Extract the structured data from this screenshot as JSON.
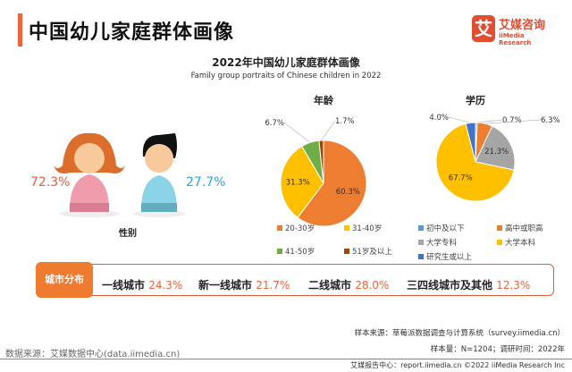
{
  "header": {
    "title": "中国幼儿家庭群体画像",
    "logo_mark": "艾",
    "logo_cn": "艾媒咨询",
    "logo_en": "iiMedia Research"
  },
  "chart_title": "2022年中国幼儿家庭群体画像",
  "chart_subtitle": "Family group portraits of Chinese children in 2022",
  "gender": {
    "label": "性别",
    "female_pct": "72.3%",
    "male_pct": "27.7%",
    "female_color": "#e06040",
    "male_color": "#2aa6e0"
  },
  "chart_data": [
    {
      "type": "pie",
      "title": "年龄",
      "categories": [
        "20-30岁",
        "31-40岁",
        "41-50岁",
        "51岁及以上"
      ],
      "values": [
        60.3,
        31.3,
        6.7,
        1.7
      ],
      "labels": [
        "60.3%",
        "31.3%",
        "6.7%",
        "1.7%"
      ],
      "colors": [
        "#ed7d31",
        "#ffc000",
        "#70ad47",
        "#9e480e"
      ]
    },
    {
      "type": "pie",
      "title": "学历",
      "categories": [
        "初中及以下",
        "高中或职高",
        "大学专科",
        "大学本科",
        "研究生或以上"
      ],
      "values": [
        0.7,
        6.3,
        21.3,
        67.7,
        4.0
      ],
      "labels": [
        "0.7%",
        "6.3%",
        "21.3%",
        "67.7%",
        "4.0%"
      ],
      "colors": [
        "#5b9bd5",
        "#ed7d31",
        "#a5a5a5",
        "#ffc000",
        "#4472c4"
      ]
    }
  ],
  "city": {
    "tag": "城市分布",
    "items": [
      {
        "name": "一线城市",
        "value": "24.3%"
      },
      {
        "name": "新一线城市",
        "value": "21.7%"
      },
      {
        "name": "二线城市",
        "value": "28.0%"
      },
      {
        "name": "三四线城市及其他",
        "value": "12.3%"
      }
    ]
  },
  "footer": {
    "sample_source": "样本来源：草莓派数据调查与计算系统（survey.iimedia.cn）",
    "sample_size": "样本量：N=1204；调研时间：2022年",
    "data_source": "数据来源：艾媒数据中心(data.iimedia.cn)",
    "copyright": "艾媒报告中心：report.iimedia.cn  ©2022  iiMedia Research Inc"
  }
}
